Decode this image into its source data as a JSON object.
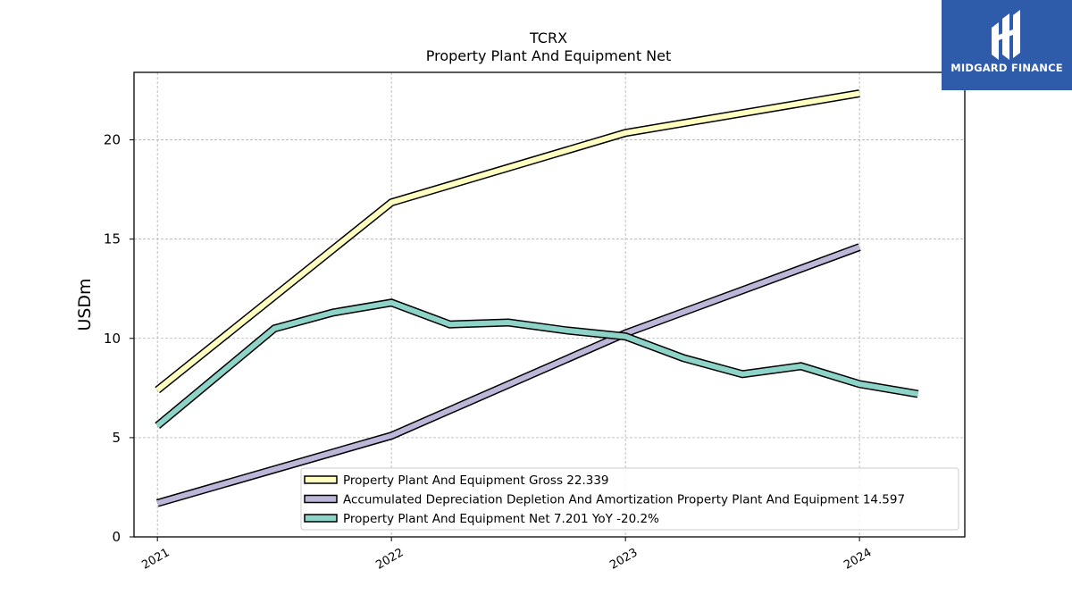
{
  "chart_data": {
    "type": "line",
    "title": "TCRX",
    "subtitle": "Property Plant And Equipment Net",
    "xlabel": "",
    "ylabel": "USDm",
    "xlim": [
      2020.9,
      2024.45
    ],
    "ylim": [
      0,
      23.4
    ],
    "x_ticks": [
      {
        "value": 2021,
        "label": "2021"
      },
      {
        "value": 2022,
        "label": "2022"
      },
      {
        "value": 2023,
        "label": "2023"
      },
      {
        "value": 2024,
        "label": "2024"
      }
    ],
    "y_ticks": [
      {
        "value": 0,
        "label": "0"
      },
      {
        "value": 5,
        "label": "5"
      },
      {
        "value": 10,
        "label": "10"
      },
      {
        "value": 15,
        "label": "15"
      },
      {
        "value": 20,
        "label": "20"
      }
    ],
    "grid": true,
    "legend_position": "lower-right",
    "series": [
      {
        "name": "Property Plant And Equipment Gross  22.339",
        "color": "#ffffbf",
        "x": [
          2021,
          2022,
          2023,
          2024
        ],
        "y": [
          7.4,
          16.85,
          20.35,
          22.34
        ]
      },
      {
        "name": "Accumulated Depreciation Depletion And Amortization Property Plant And Equipment  14.597",
        "color": "#bcb7d9",
        "x": [
          2021,
          2022,
          2023,
          2024
        ],
        "y": [
          1.7,
          5.1,
          10.25,
          14.6
        ]
      },
      {
        "name": "Property Plant And Equipment Net  7.201 YoY -20.2%",
        "color": "#8dd3c7",
        "x": [
          2021,
          2021.5,
          2021.75,
          2022,
          2022.25,
          2022.5,
          2022.75,
          2023,
          2023.25,
          2023.5,
          2023.75,
          2024,
          2024.25
        ],
        "y": [
          5.6,
          10.5,
          11.3,
          11.8,
          10.7,
          10.8,
          10.4,
          10.1,
          9.0,
          8.2,
          8.6,
          7.7,
          7.2
        ]
      }
    ]
  },
  "logo": {
    "text": "MIDGARD FINANCE"
  }
}
